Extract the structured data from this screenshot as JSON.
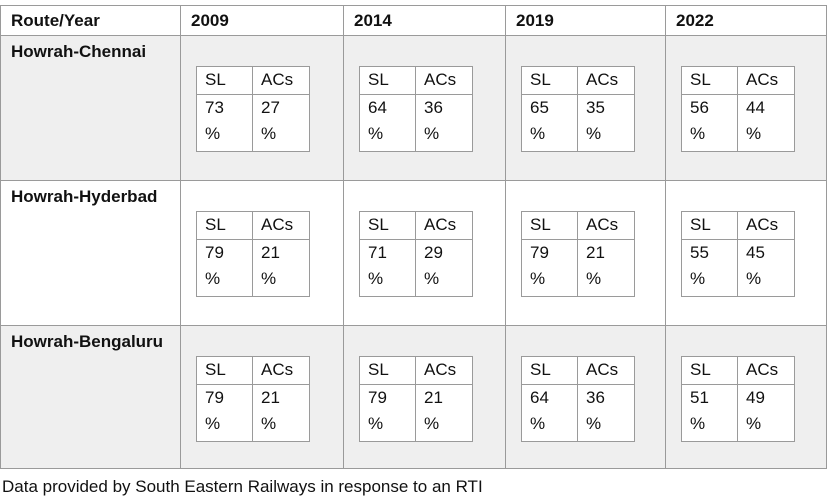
{
  "table": {
    "header": [
      "Route/Year",
      "2009",
      "2014",
      "2019",
      "2022"
    ],
    "subheader": [
      "SL",
      "ACs"
    ],
    "rows": [
      {
        "route": "Howrah-Chennai",
        "cells": [
          [
            "73 %",
            "27 %"
          ],
          [
            "64 %",
            "36 %"
          ],
          [
            "65 %",
            "35 %"
          ],
          [
            "56 %",
            "44 %"
          ]
        ]
      },
      {
        "route": "Howrah-Hyderbad",
        "cells": [
          [
            "79 %",
            "21 %"
          ],
          [
            "71 %",
            "29 %"
          ],
          [
            "79 %",
            "21 %"
          ],
          [
            "55 %",
            "45 %"
          ]
        ]
      },
      {
        "route": "Howrah-Bengaluru",
        "cells": [
          [
            "79 %",
            "21 %"
          ],
          [
            "79 %",
            "21 %"
          ],
          [
            "64 %",
            "36 %"
          ],
          [
            "51 %",
            "49 %"
          ]
        ]
      }
    ]
  },
  "footnote": "Data provided by South Eastern Railways in response to an RTI"
}
